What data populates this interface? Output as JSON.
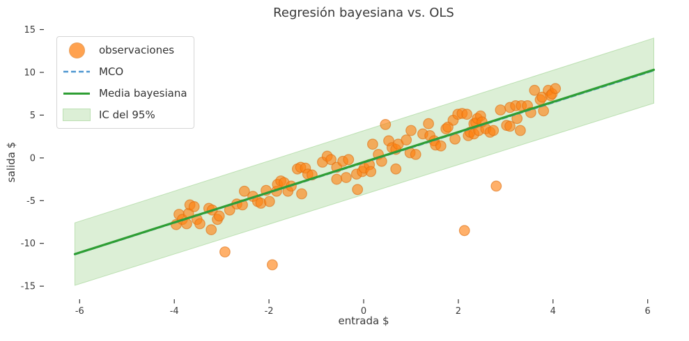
{
  "title": "Regresión bayesiana vs. OLS",
  "axes": {
    "xlabel": "entrada $",
    "ylabel": "salida $",
    "xticks": [
      -6,
      -4,
      -2,
      0,
      2,
      4,
      6
    ],
    "yticks": [
      -15,
      -10,
      -5,
      0,
      5,
      10,
      15
    ]
  },
  "legend": {
    "items": [
      {
        "label": "observaciones",
        "type": "marker",
        "color": "#ff7f0e",
        "alpha": 0.72,
        "edge": "#e07b1e"
      },
      {
        "label": "MCO",
        "type": "dashed-line",
        "color": "#4c96d0"
      },
      {
        "label": "Media bayesiana",
        "type": "line",
        "color": "#2e9e33"
      },
      {
        "label": "IC del 95%",
        "type": "patch",
        "color": "#dcefd6",
        "edge": "#bce0b2"
      }
    ]
  },
  "chart_data": {
    "type": "scatter",
    "title": "Regresión bayesiana vs. OLS",
    "xlabel": "entrada $",
    "ylabel": "salida $",
    "xlim": [
      -6.74,
      6.74
    ],
    "ylim": [
      -16.45,
      15.45
    ],
    "grid": false,
    "legend_position": "upper left",
    "series": [
      {
        "name": "IC del 95%",
        "type": "band",
        "fill": "#dcefd6",
        "edge": "#bce0b2",
        "x": [
          -6.1,
          6.13
        ],
        "upper": [
          -7.6,
          14.0
        ],
        "lower": [
          -14.9,
          6.4
        ]
      },
      {
        "name": "observaciones",
        "type": "scatter",
        "color": "#ff7f0e",
        "alpha": 0.62,
        "edge": "#dd7012",
        "marker_radius": 7.3,
        "points": [
          [
            -3.96,
            -7.8
          ],
          [
            -3.9,
            -6.6
          ],
          [
            -3.83,
            -7.2
          ],
          [
            -3.74,
            -7.7
          ],
          [
            -3.7,
            -6.5
          ],
          [
            -3.67,
            -5.5
          ],
          [
            -3.58,
            -5.7
          ],
          [
            -3.52,
            -7.2
          ],
          [
            -3.46,
            -7.7
          ],
          [
            -3.27,
            -5.9
          ],
          [
            -3.22,
            -8.4
          ],
          [
            -3.2,
            -6.1
          ],
          [
            -3.09,
            -7.2
          ],
          [
            -3.05,
            -6.8
          ],
          [
            -2.83,
            -6.1
          ],
          [
            -2.68,
            -5.4
          ],
          [
            -2.56,
            -5.5
          ],
          [
            -2.52,
            -3.9
          ],
          [
            -2.34,
            -4.5
          ],
          [
            -2.24,
            -5.1
          ],
          [
            -2.17,
            -5.3
          ],
          [
            -2.06,
            -3.8
          ],
          [
            -1.99,
            -5.1
          ],
          [
            -1.84,
            -3.9
          ],
          [
            -1.82,
            -3.1
          ],
          [
            -1.75,
            -2.7
          ],
          [
            -1.68,
            -2.9
          ],
          [
            -1.6,
            -3.9
          ],
          [
            -1.53,
            -3.3
          ],
          [
            -1.4,
            -1.3
          ],
          [
            -1.33,
            -1.1
          ],
          [
            -1.31,
            -4.2
          ],
          [
            -1.23,
            -1.2
          ],
          [
            -1.18,
            -1.9
          ],
          [
            -1.09,
            -2.0
          ],
          [
            -0.87,
            -0.5
          ],
          [
            -0.77,
            0.2
          ],
          [
            -0.69,
            -0.2
          ],
          [
            -0.57,
            -1.1
          ],
          [
            -0.57,
            -2.5
          ],
          [
            -0.44,
            -0.4
          ],
          [
            -0.37,
            -2.3
          ],
          [
            -0.32,
            -0.2
          ],
          [
            -0.15,
            -1.9
          ],
          [
            -0.13,
            -3.7
          ],
          [
            -0.03,
            -1.6
          ],
          [
            0.01,
            -1.2
          ],
          [
            0.12,
            -0.8
          ],
          [
            0.15,
            -1.6
          ],
          [
            0.19,
            1.6
          ],
          [
            0.31,
            0.4
          ],
          [
            0.38,
            -0.4
          ],
          [
            0.46,
            3.9
          ],
          [
            0.53,
            2.0
          ],
          [
            0.6,
            1.2
          ],
          [
            0.68,
            1.0
          ],
          [
            0.68,
            -1.3
          ],
          [
            0.73,
            1.6
          ],
          [
            0.9,
            2.1
          ],
          [
            0.98,
            0.6
          ],
          [
            1.0,
            3.2
          ],
          [
            1.1,
            0.4
          ],
          [
            1.25,
            2.8
          ],
          [
            1.37,
            4.0
          ],
          [
            1.4,
            2.6
          ],
          [
            1.49,
            2.0
          ],
          [
            1.52,
            1.5
          ],
          [
            1.63,
            1.4
          ],
          [
            1.74,
            3.4
          ],
          [
            1.78,
            3.6
          ],
          [
            1.89,
            4.4
          ],
          [
            1.93,
            2.2
          ],
          [
            1.99,
            5.1
          ],
          [
            2.08,
            5.2
          ],
          [
            2.18,
            5.1
          ],
          [
            2.21,
            2.6
          ],
          [
            2.25,
            3.0
          ],
          [
            2.33,
            4.0
          ],
          [
            2.33,
            2.8
          ],
          [
            2.37,
            4.1
          ],
          [
            2.4,
            4.6
          ],
          [
            2.43,
            3.2
          ],
          [
            2.47,
            4.9
          ],
          [
            2.5,
            4.2
          ],
          [
            2.58,
            3.4
          ],
          [
            2.67,
            3.0
          ],
          [
            2.74,
            3.2
          ],
          [
            2.89,
            5.6
          ],
          [
            3.02,
            3.8
          ],
          [
            3.09,
            5.9
          ],
          [
            3.09,
            3.7
          ],
          [
            3.21,
            6.1
          ],
          [
            3.24,
            4.6
          ],
          [
            3.31,
            3.2
          ],
          [
            3.33,
            6.1
          ],
          [
            3.46,
            6.1
          ],
          [
            3.53,
            5.3
          ],
          [
            3.61,
            7.9
          ],
          [
            3.73,
            6.8
          ],
          [
            3.77,
            7.1
          ],
          [
            3.8,
            5.5
          ],
          [
            3.9,
            7.9
          ],
          [
            3.95,
            7.3
          ],
          [
            3.98,
            7.5
          ],
          [
            4.05,
            8.1
          ],
          [
            -2.93,
            -11.0
          ],
          [
            -1.93,
            -12.5
          ],
          [
            2.13,
            -8.5
          ],
          [
            2.8,
            -3.3
          ]
        ]
      },
      {
        "name": "MCO",
        "type": "line",
        "style": "dashed",
        "color": "#4c96d0",
        "width": 2.2,
        "x": [
          -6.1,
          6.13
        ],
        "y": [
          -11.3,
          10.2
        ]
      },
      {
        "name": "Media bayesiana",
        "type": "line",
        "style": "solid",
        "color": "#2e9e33",
        "width": 3.2,
        "x": [
          -6.1,
          6.13
        ],
        "y": [
          -11.25,
          10.3
        ]
      }
    ]
  }
}
